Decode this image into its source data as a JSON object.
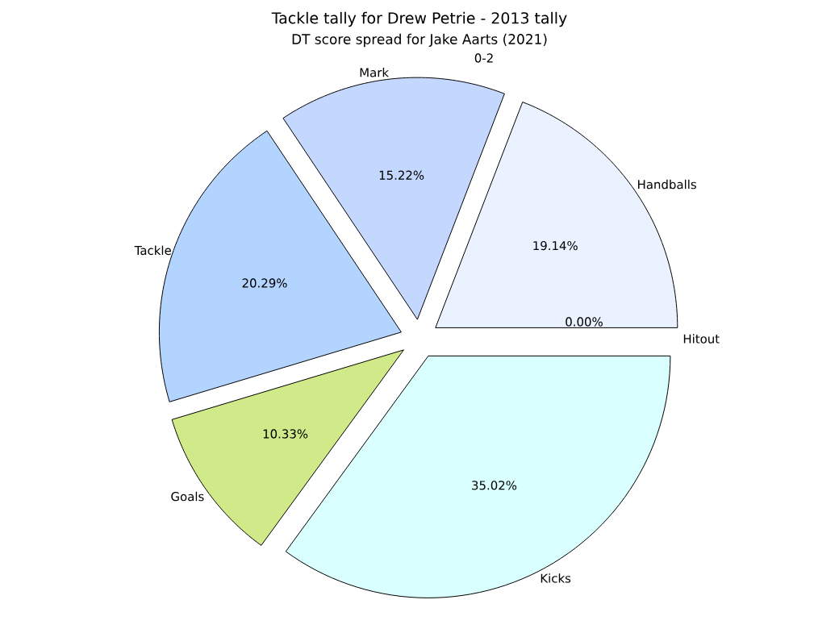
{
  "chart_data": {
    "type": "pie",
    "title": "Tackle tally for Drew Petrie - 2013 tally",
    "subtitle": "DT score spread for Jake Aarts (2021)",
    "categories": [
      "Handballs",
      "Mark",
      "Tackle",
      "Goals",
      "Kicks",
      "Hitout"
    ],
    "values": [
      19.14,
      15.22,
      20.29,
      10.33,
      35.02,
      0.0
    ],
    "colors": [
      "#eaf2ff",
      "#c4d8ff",
      "#b3d4ff",
      "#d0ea8a",
      "#d9ffff",
      "#b8ccff"
    ],
    "value_labels": [
      "19.14%",
      "15.22%",
      "20.29%",
      "10.33%",
      "35.02%",
      "0.00%"
    ],
    "annotations": [
      "0-2"
    ]
  }
}
